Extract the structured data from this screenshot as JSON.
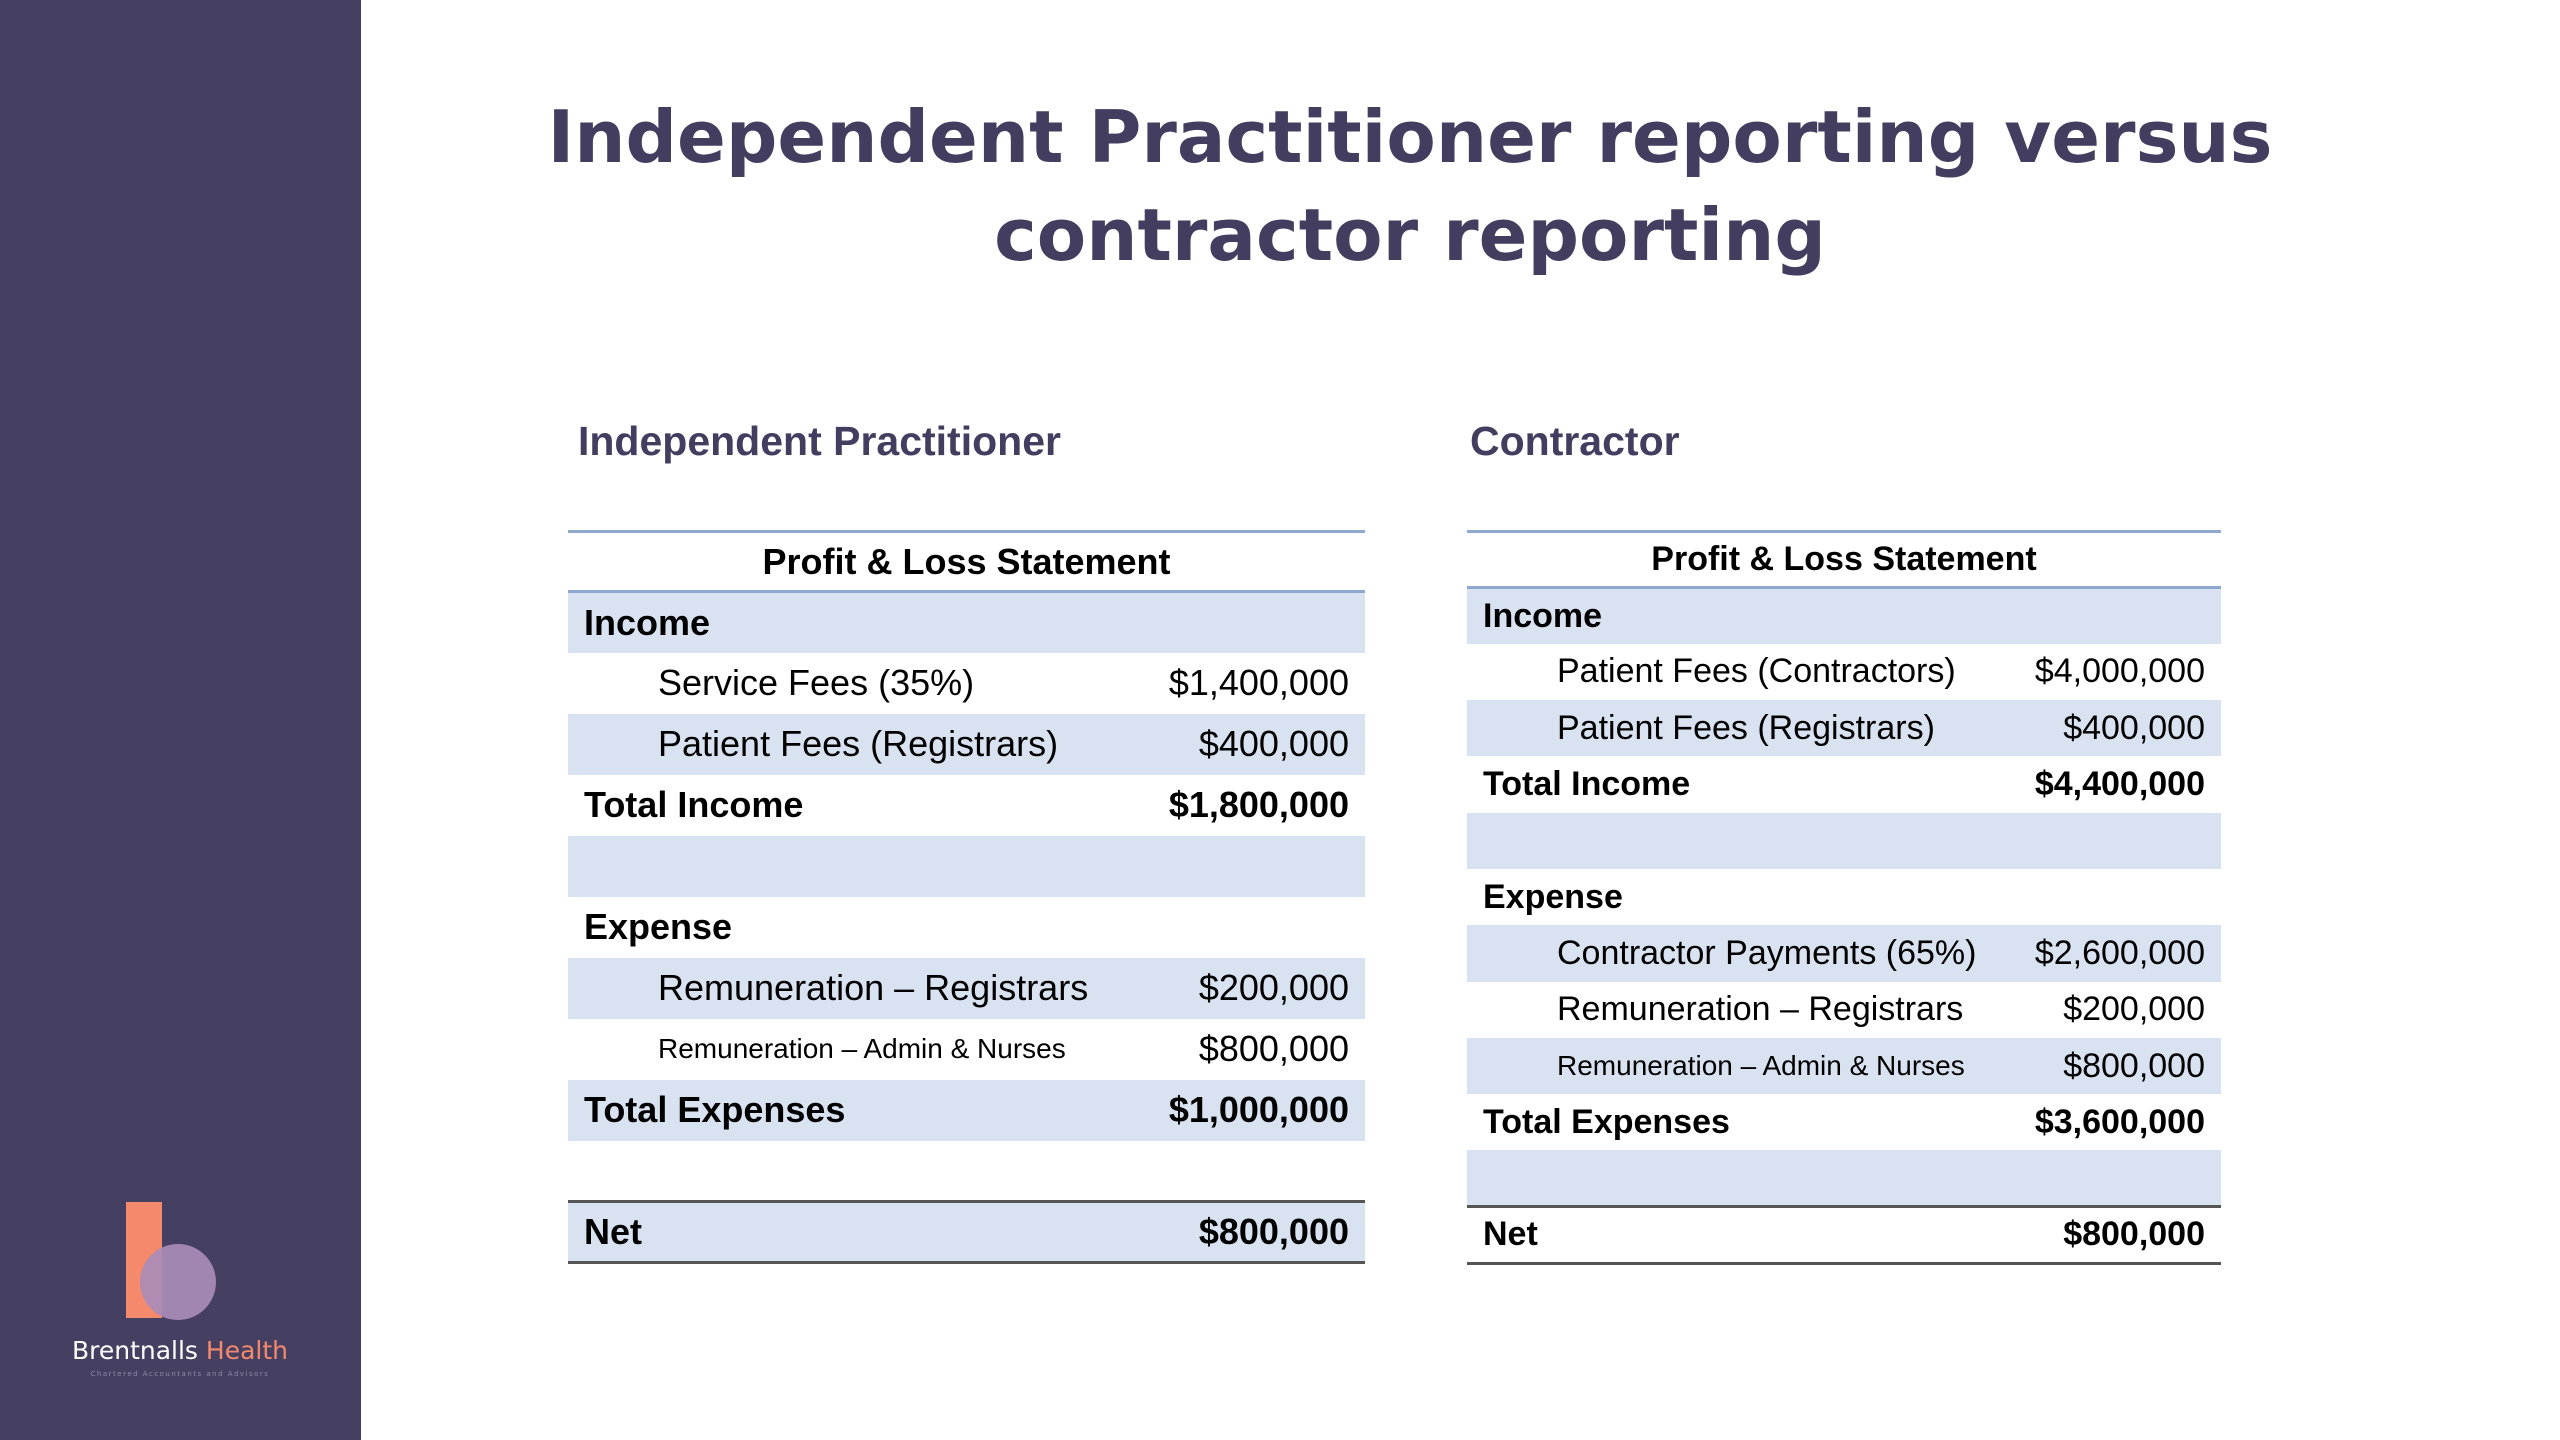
{
  "title": {
    "line1": "Independent Practitioner reporting versus",
    "line2": "contractor reporting"
  },
  "logo": {
    "brand_primary": "Brentnalls",
    "brand_accent": "Health",
    "tagline": "Chartered Accountants and Advisors",
    "colors": {
      "bar": "#f4896b",
      "circle": "#a98cb8"
    }
  },
  "left": {
    "heading": "Independent Practitioner",
    "table_title": "Profit & Loss Statement",
    "income_label": "Income",
    "income_rows": [
      {
        "label": "Service Fees (35%)",
        "value": "$1,400,000"
      },
      {
        "label": "Patient Fees (Registrars)",
        "value": "$400,000"
      }
    ],
    "total_income": {
      "label": "Total Income",
      "value": "$1,800,000"
    },
    "expense_label": "Expense",
    "expense_rows": [
      {
        "label": "Remuneration – Registrars",
        "value": "$200,000"
      },
      {
        "label": "Remuneration – Admin & Nurses",
        "value": "$800,000"
      }
    ],
    "total_expenses": {
      "label": "Total Expenses",
      "value": "$1,000,000"
    },
    "net": {
      "label": "Net",
      "value": "$800,000"
    }
  },
  "right": {
    "heading": "Contractor",
    "table_title": "Profit & Loss Statement",
    "income_label": "Income",
    "income_rows": [
      {
        "label": "Patient Fees (Contractors)",
        "value": "$4,000,000"
      },
      {
        "label": "Patient Fees (Registrars)",
        "value": "$400,000"
      }
    ],
    "total_income": {
      "label": "Total Income",
      "value": "$4,400,000"
    },
    "expense_label": "Expense",
    "expense_rows": [
      {
        "label": "Contractor Payments (65%)",
        "value": "$2,600,000"
      },
      {
        "label": "Remuneration – Registrars",
        "value": "$200,000"
      },
      {
        "label": "Remuneration – Admin & Nurses",
        "value": "$800,000"
      }
    ],
    "total_expenses": {
      "label": "Total Expenses",
      "value": "$3,600,000"
    },
    "net": {
      "label": "Net",
      "value": "$800,000"
    }
  },
  "colors": {
    "sidebar": "#453f61",
    "heading": "#433d5f",
    "band": "#d9e2f1",
    "rule": "#8ea8d0"
  }
}
